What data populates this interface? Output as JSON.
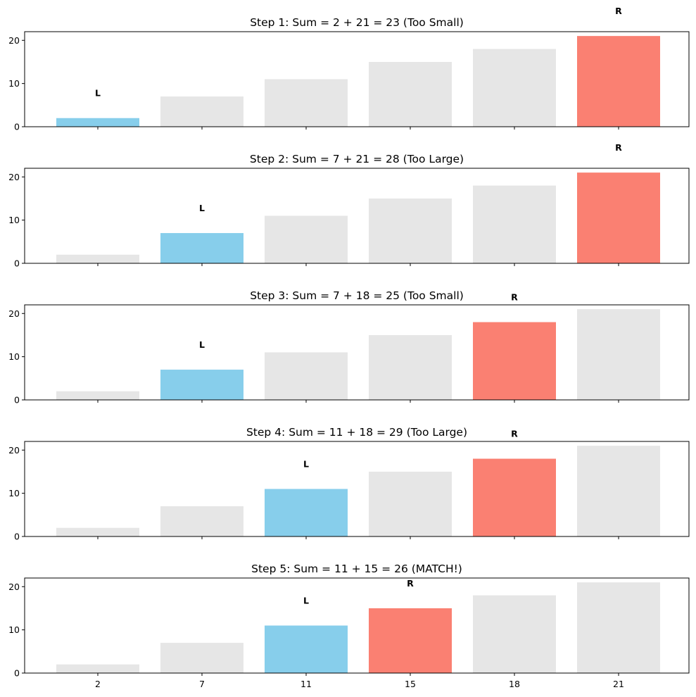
{
  "chart_data": [
    {
      "type": "bar",
      "title": "Step 1: Sum = 2 + 21 = 23 (Too Small)",
      "categories": [
        "2",
        "7",
        "11",
        "15",
        "18",
        "21"
      ],
      "values": [
        2,
        7,
        11,
        15,
        18,
        21
      ],
      "left_index": 0,
      "right_index": 5,
      "left_label": "L",
      "right_label": "R",
      "ylim": [
        0,
        22
      ],
      "yticks": [
        "0",
        "10",
        "20"
      ],
      "show_xtick_labels": false
    },
    {
      "type": "bar",
      "title": "Step 2: Sum = 7 + 21 = 28 (Too Large)",
      "categories": [
        "2",
        "7",
        "11",
        "15",
        "18",
        "21"
      ],
      "values": [
        2,
        7,
        11,
        15,
        18,
        21
      ],
      "left_index": 1,
      "right_index": 5,
      "left_label": "L",
      "right_label": "R",
      "ylim": [
        0,
        22
      ],
      "yticks": [
        "0",
        "10",
        "20"
      ],
      "show_xtick_labels": false
    },
    {
      "type": "bar",
      "title": "Step 3: Sum = 7 + 18 = 25 (Too Small)",
      "categories": [
        "2",
        "7",
        "11",
        "15",
        "18",
        "21"
      ],
      "values": [
        2,
        7,
        11,
        15,
        18,
        21
      ],
      "left_index": 1,
      "right_index": 4,
      "left_label": "L",
      "right_label": "R",
      "ylim": [
        0,
        22
      ],
      "yticks": [
        "0",
        "10",
        "20"
      ],
      "show_xtick_labels": false
    },
    {
      "type": "bar",
      "title": "Step 4: Sum = 11 + 18 = 29 (Too Large)",
      "categories": [
        "2",
        "7",
        "11",
        "15",
        "18",
        "21"
      ],
      "values": [
        2,
        7,
        11,
        15,
        18,
        21
      ],
      "left_index": 2,
      "right_index": 4,
      "left_label": "L",
      "right_label": "R",
      "ylim": [
        0,
        22
      ],
      "yticks": [
        "0",
        "10",
        "20"
      ],
      "show_xtick_labels": false
    },
    {
      "type": "bar",
      "title": "Step 5: Sum = 11 + 15 = 26 (MATCH!)",
      "categories": [
        "2",
        "7",
        "11",
        "15",
        "18",
        "21"
      ],
      "values": [
        2,
        7,
        11,
        15,
        18,
        21
      ],
      "left_index": 2,
      "right_index": 3,
      "left_label": "L",
      "right_label": "R",
      "ylim": [
        0,
        22
      ],
      "yticks": [
        "0",
        "10",
        "20"
      ],
      "show_xtick_labels": true
    }
  ],
  "colors": {
    "left_pointer": "#87CEEB",
    "right_pointer": "#FA8072",
    "other": "#E6E6E6",
    "axis": "#000000"
  }
}
